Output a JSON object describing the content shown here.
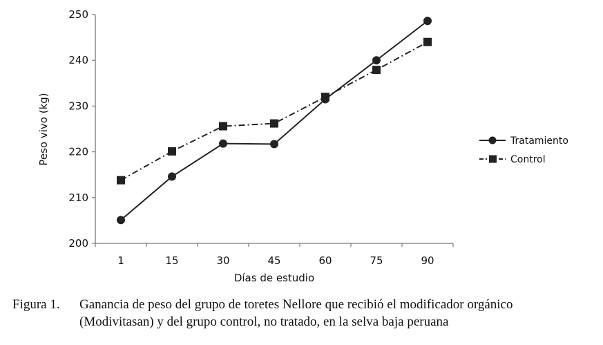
{
  "chart_data": {
    "type": "line",
    "categories": [
      "1",
      "15",
      "30",
      "45",
      "60",
      "75",
      "90"
    ],
    "series": [
      {
        "name": "Tratamiento",
        "values": [
          205.1,
          214.6,
          221.8,
          221.7,
          231.5,
          240.0,
          248.6
        ],
        "color": "#222222",
        "marker": "circle",
        "dash": "solid"
      },
      {
        "name": "Control",
        "values": [
          213.8,
          220.1,
          225.6,
          226.2,
          232.0,
          237.9,
          244.0
        ],
        "color": "#222222",
        "marker": "square",
        "dash": "dash-dot"
      }
    ],
    "title": "",
    "xlabel": "Días de estudio",
    "ylabel": "Peso vivo (kg)",
    "ylim": [
      200,
      250
    ],
    "yticks": [
      200,
      210,
      220,
      230,
      240,
      250
    ],
    "grid": false,
    "legend_position": "right"
  },
  "caption": {
    "label": "Figura 1.",
    "line1": "Ganancia de peso del grupo de toretes Nellore que recibió el modificador orgánico",
    "line2": "(Modivitasan) y del grupo control, no tratado, en la selva baja peruana"
  }
}
